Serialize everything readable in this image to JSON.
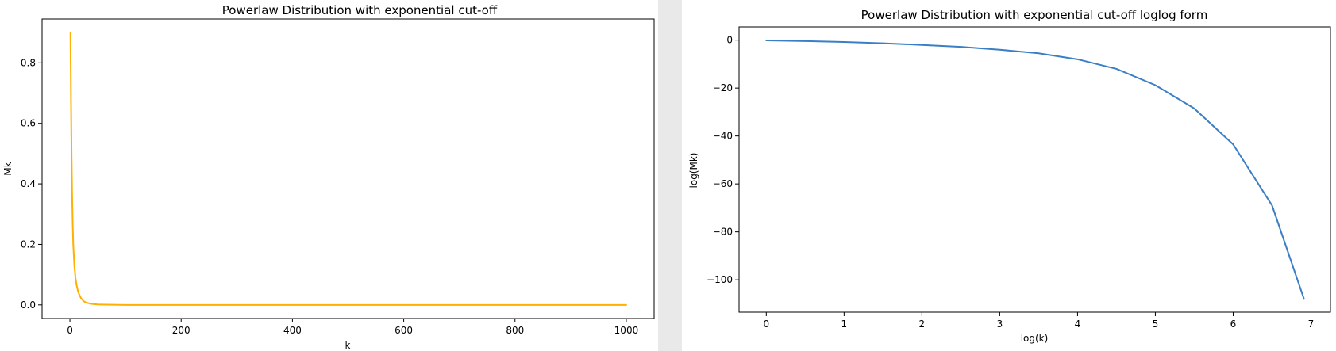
{
  "chart_data": [
    {
      "type": "line",
      "title": "Powerlaw Distribution with exponential cut-off",
      "xlabel": "k",
      "ylabel": "Mk",
      "xlim": [
        -50,
        1050
      ],
      "ylim": [
        -0.045,
        0.945
      ],
      "xticks": [
        0,
        200,
        400,
        600,
        800,
        1000
      ],
      "yticks": [
        0.0,
        0.2,
        0.4,
        0.6,
        0.8
      ],
      "xtick_labels": [
        "0",
        "200",
        "400",
        "600",
        "800",
        "1000"
      ],
      "ytick_labels": [
        "0.0",
        "0.2",
        "0.4",
        "0.6",
        "0.8"
      ],
      "grid": false,
      "series": [
        {
          "color": "#ffb000",
          "x": [
            1,
            2,
            3,
            4,
            5,
            6,
            8,
            10,
            12,
            15,
            20,
            25,
            30,
            40,
            50,
            100,
            200,
            400,
            600,
            800,
            1000
          ],
          "y": [
            0.9,
            0.67,
            0.49,
            0.36,
            0.27,
            0.2,
            0.13,
            0.09,
            0.065,
            0.042,
            0.022,
            0.012,
            0.007,
            0.003,
            0.0015,
            0.0,
            0.0,
            0.0,
            0.0,
            0.0,
            0.0
          ]
        }
      ]
    },
    {
      "type": "line",
      "title": "Powerlaw Distribution with exponential cut-off loglog form",
      "xlabel": "log(k)",
      "ylabel": "log(Mk)",
      "xlim": [
        -0.35,
        7.25
      ],
      "ylim": [
        -113.5,
        5.5
      ],
      "xticks": [
        0,
        1,
        2,
        3,
        4,
        5,
        6,
        7
      ],
      "yticks": [
        0,
        -20,
        -40,
        -60,
        -80,
        -100
      ],
      "xtick_labels": [
        "0",
        "1",
        "2",
        "3",
        "4",
        "5",
        "6",
        "7"
      ],
      "ytick_labels": [
        "0",
        "−20",
        "−40",
        "−60",
        "−80",
        "−100"
      ],
      "grid": false,
      "series": [
        {
          "color": "#3a7fc6",
          "x": [
            0,
            0.5,
            1,
            1.5,
            2,
            2.5,
            3,
            3.5,
            4,
            4.5,
            5,
            5.5,
            6,
            6.5,
            6.91
          ],
          "y": [
            -0.1,
            -0.4,
            -0.8,
            -1.3,
            -2.0,
            -2.8,
            -4.0,
            -5.5,
            -8.0,
            -12.0,
            -18.8,
            -28.5,
            -43.5,
            -69.0,
            -108.0
          ]
        }
      ]
    }
  ]
}
